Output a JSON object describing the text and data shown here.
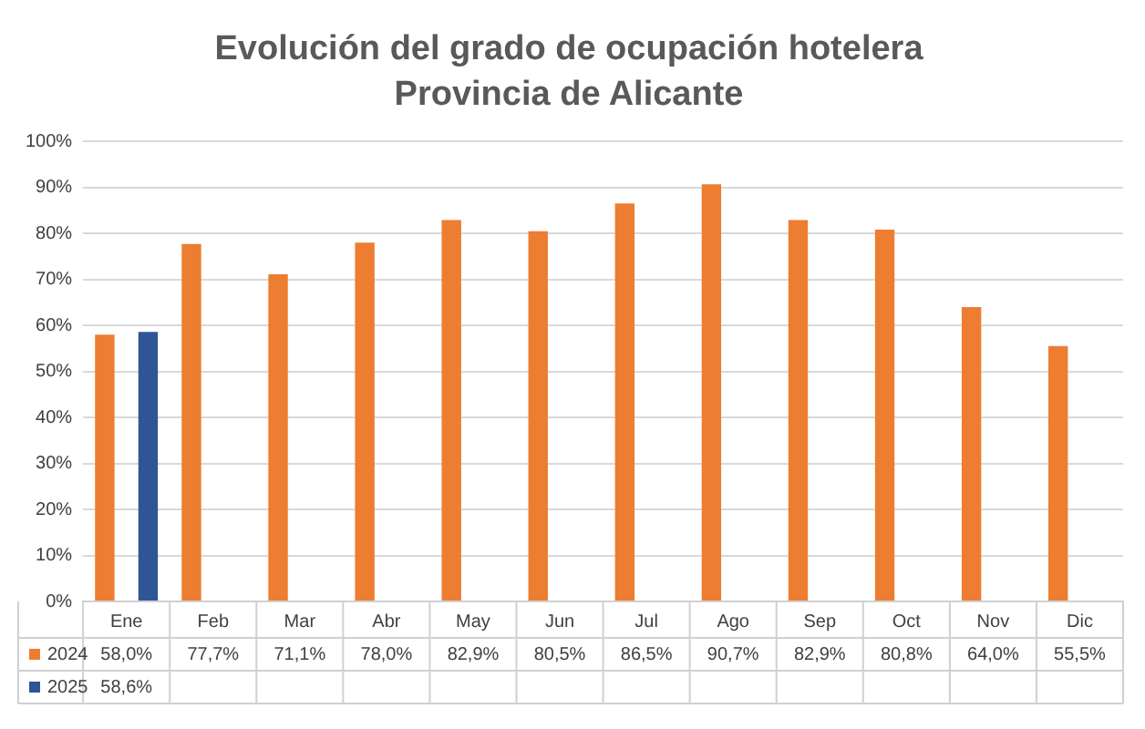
{
  "chart_data": {
    "type": "bar",
    "title": "Evolución del grado de ocupación hotelera",
    "subtitle": "Provincia de Alicante",
    "categories": [
      "Ene",
      "Feb",
      "Mar",
      "Abr",
      "May",
      "Jun",
      "Jul",
      "Ago",
      "Sep",
      "Oct",
      "Nov",
      "Dic"
    ],
    "series": [
      {
        "name": "2024",
        "color": "#ed7d31",
        "values": [
          58.0,
          77.7,
          71.1,
          78.0,
          82.9,
          80.5,
          86.5,
          90.7,
          82.9,
          80.8,
          64.0,
          55.5
        ],
        "value_labels": [
          "58,0%",
          "77,7%",
          "71,1%",
          "78,0%",
          "82,9%",
          "80,5%",
          "86,5%",
          "90,7%",
          "82,9%",
          "80,8%",
          "64,0%",
          "55,5%"
        ]
      },
      {
        "name": "2025",
        "color": "#2f5597",
        "values": [
          58.6,
          null,
          null,
          null,
          null,
          null,
          null,
          null,
          null,
          null,
          null,
          null
        ],
        "value_labels": [
          "58,6%",
          null,
          null,
          null,
          null,
          null,
          null,
          null,
          null,
          null,
          null,
          null
        ]
      }
    ],
    "ylim": [
      0,
      100
    ],
    "yticks": [
      {
        "value": 0,
        "label": "0%"
      },
      {
        "value": 10,
        "label": "10%"
      },
      {
        "value": 20,
        "label": "20%"
      },
      {
        "value": 30,
        "label": "30%"
      },
      {
        "value": 40,
        "label": "40%"
      },
      {
        "value": 50,
        "label": "50%"
      },
      {
        "value": 60,
        "label": "60%"
      },
      {
        "value": 70,
        "label": "70%"
      },
      {
        "value": 80,
        "label": "80%"
      },
      {
        "value": 90,
        "label": "90%"
      },
      {
        "value": 100,
        "label": "100%"
      }
    ],
    "grid": "y",
    "legend": "bottom"
  }
}
